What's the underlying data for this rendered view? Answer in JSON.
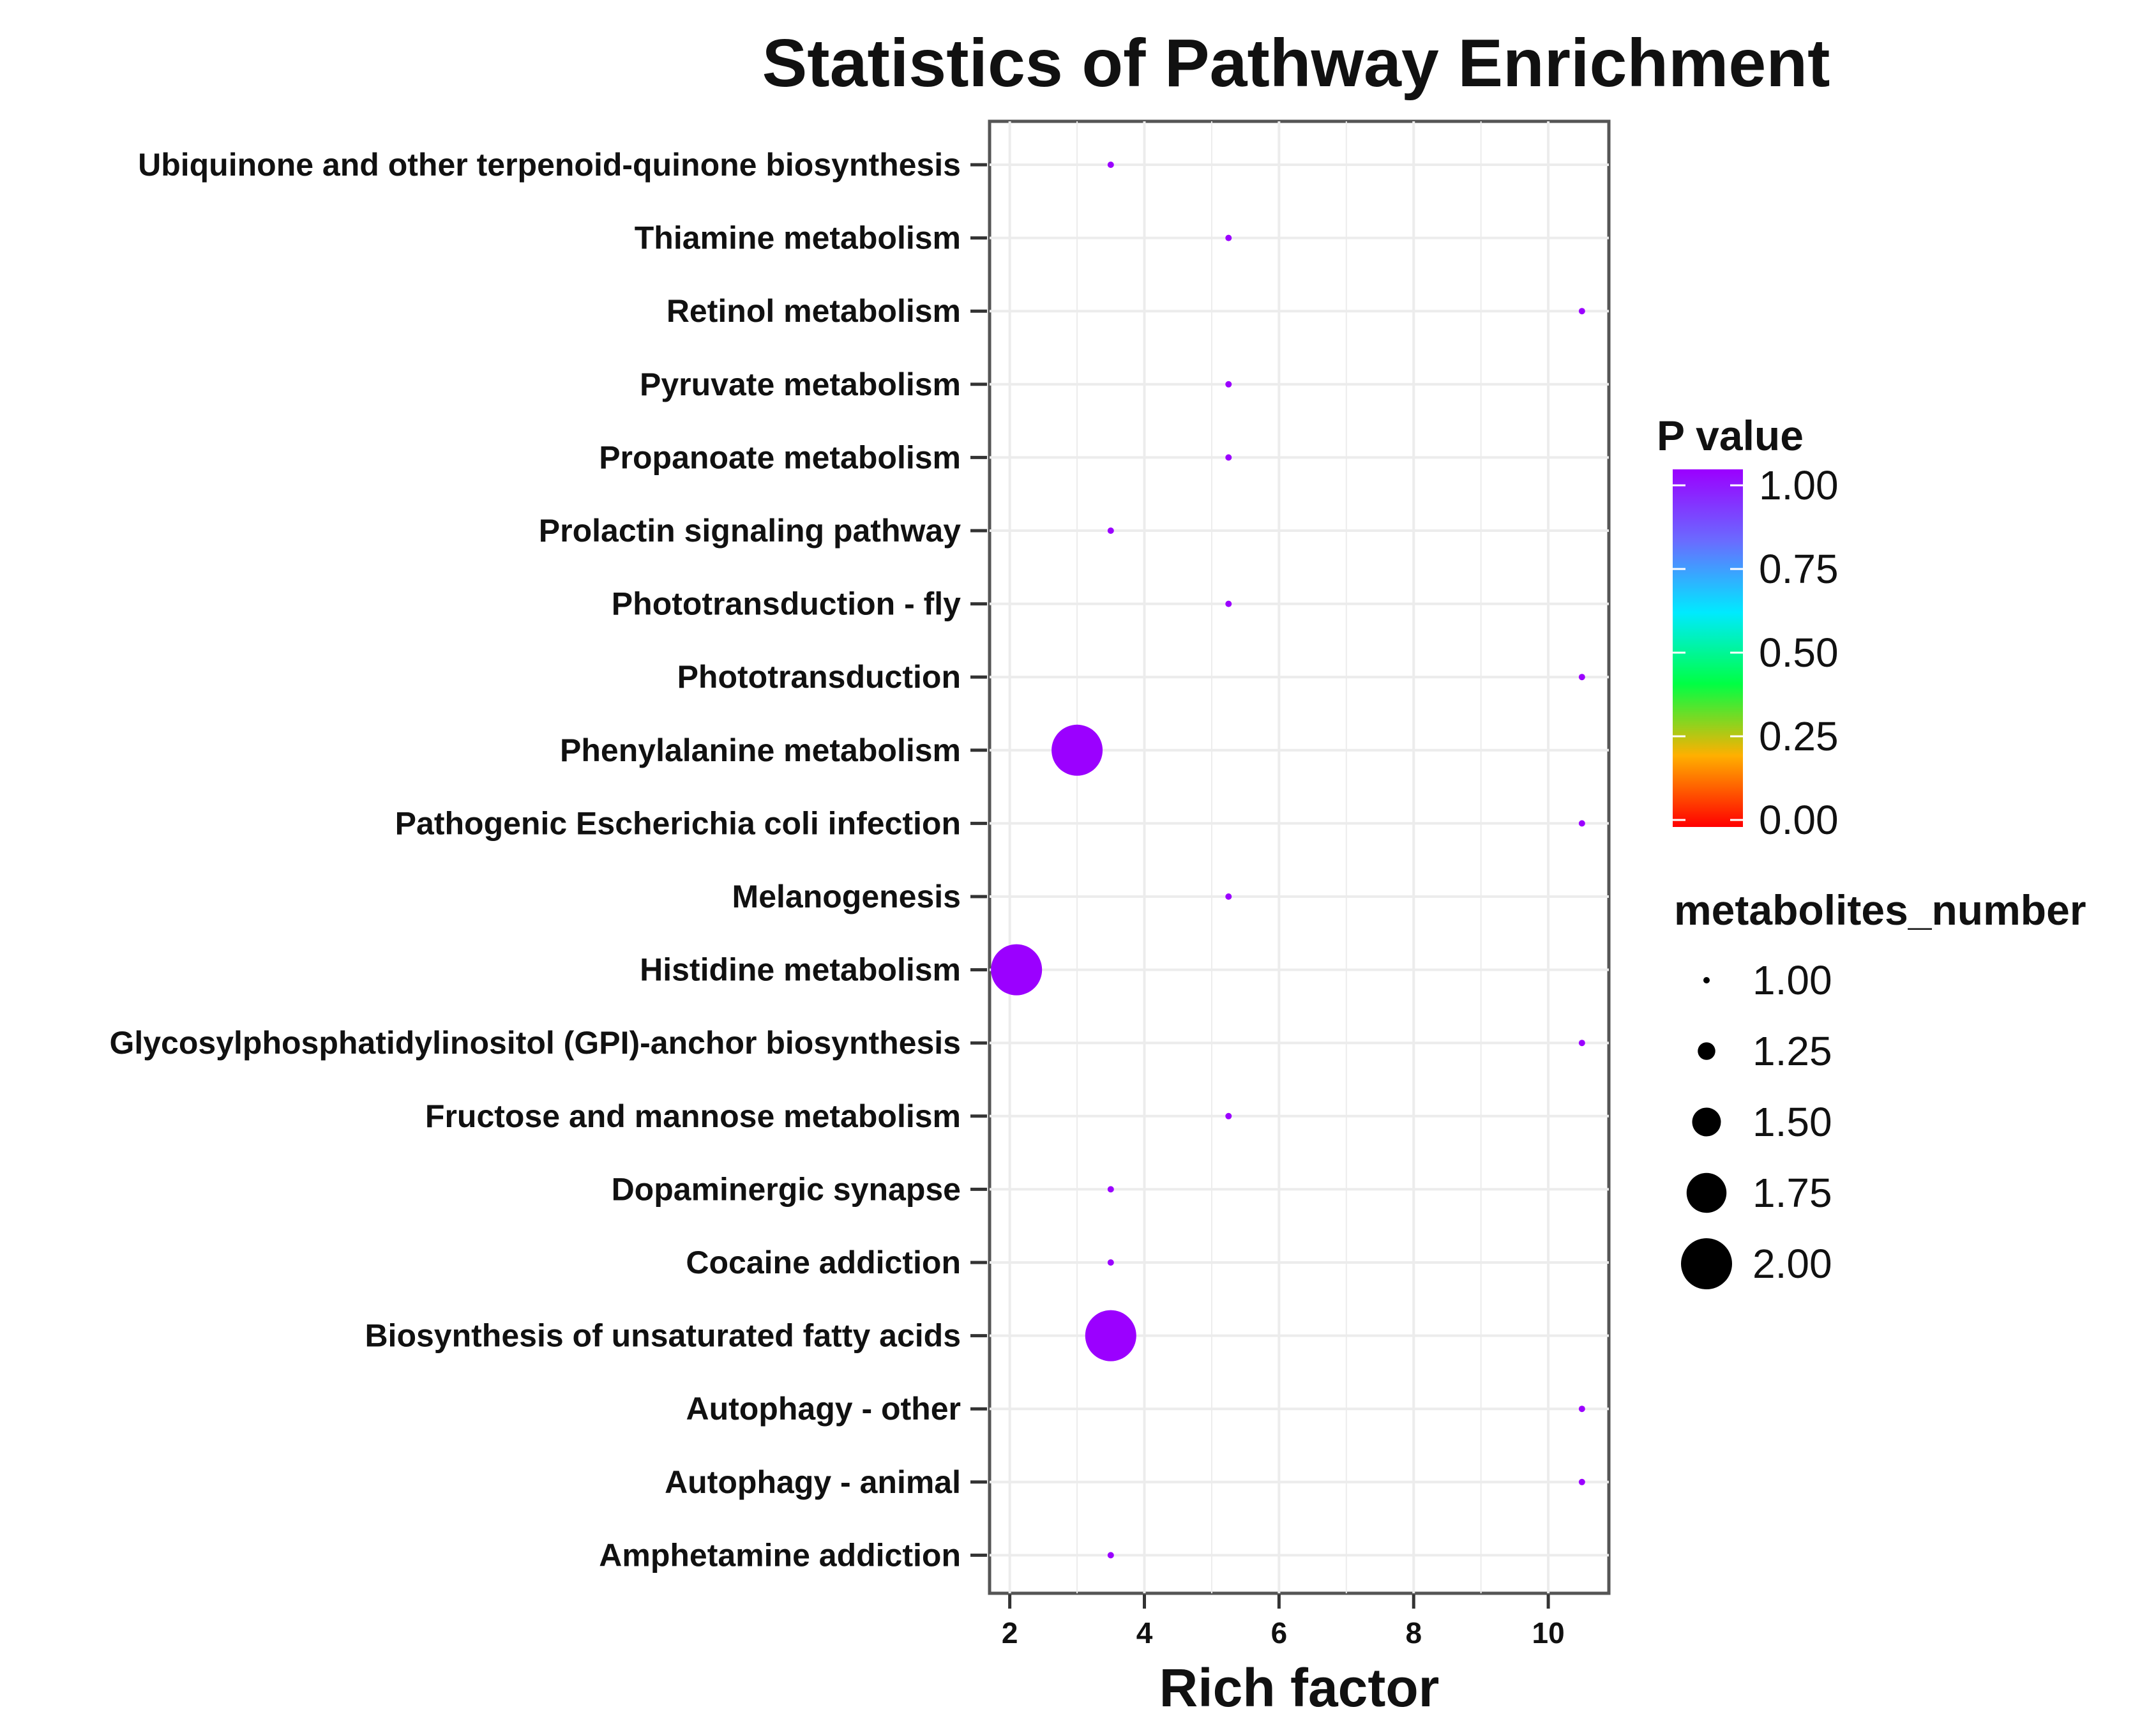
{
  "chart_data": {
    "type": "scatter",
    "title": "Statistics of Pathway Enrichment",
    "xlabel": "Rich factor",
    "ylabel": "",
    "xlim": [
      1.7,
      10.9
    ],
    "xticks": [
      2,
      4,
      6,
      8,
      10
    ],
    "grid": true,
    "categories": [
      "Ubiquinone and other terpenoid-quinone biosynthesis",
      "Thiamine metabolism",
      "Retinol metabolism",
      "Pyruvate metabolism",
      "Propanoate metabolism",
      "Prolactin signaling pathway",
      "Phototransduction - fly",
      "Phototransduction",
      "Phenylalanine metabolism",
      "Pathogenic Escherichia coli infection",
      "Melanogenesis",
      "Histidine metabolism",
      "Glycosylphosphatidylinositol (GPI)-anchor biosynthesis",
      "Fructose and mannose metabolism",
      "Dopaminergic synapse",
      "Cocaine addiction",
      "Biosynthesis of unsaturated fatty acids",
      "Autophagy - other",
      "Autophagy - animal",
      "Amphetamine addiction"
    ],
    "points": [
      {
        "pathway": "Ubiquinone and other terpenoid-quinone biosynthesis",
        "rich_factor": 3.5,
        "metabolites_number": 1,
        "p_value": 1.0
      },
      {
        "pathway": "Thiamine metabolism",
        "rich_factor": 5.25,
        "metabolites_number": 1,
        "p_value": 1.0
      },
      {
        "pathway": "Retinol metabolism",
        "rich_factor": 10.5,
        "metabolites_number": 1,
        "p_value": 1.0
      },
      {
        "pathway": "Pyruvate metabolism",
        "rich_factor": 5.25,
        "metabolites_number": 1,
        "p_value": 1.0
      },
      {
        "pathway": "Propanoate metabolism",
        "rich_factor": 5.25,
        "metabolites_number": 1,
        "p_value": 1.0
      },
      {
        "pathway": "Prolactin signaling pathway",
        "rich_factor": 3.5,
        "metabolites_number": 1,
        "p_value": 1.0
      },
      {
        "pathway": "Phototransduction - fly",
        "rich_factor": 5.25,
        "metabolites_number": 1,
        "p_value": 1.0
      },
      {
        "pathway": "Phototransduction",
        "rich_factor": 10.5,
        "metabolites_number": 1,
        "p_value": 1.0
      },
      {
        "pathway": "Phenylalanine metabolism",
        "rich_factor": 3.0,
        "metabolites_number": 2,
        "p_value": 1.0
      },
      {
        "pathway": "Pathogenic Escherichia coli infection",
        "rich_factor": 10.5,
        "metabolites_number": 1,
        "p_value": 1.0
      },
      {
        "pathway": "Melanogenesis",
        "rich_factor": 5.25,
        "metabolites_number": 1,
        "p_value": 1.0
      },
      {
        "pathway": "Histidine metabolism",
        "rich_factor": 2.1,
        "metabolites_number": 2,
        "p_value": 1.0
      },
      {
        "pathway": "Glycosylphosphatidylinositol (GPI)-anchor biosynthesis",
        "rich_factor": 10.5,
        "metabolites_number": 1,
        "p_value": 1.0
      },
      {
        "pathway": "Fructose and mannose metabolism",
        "rich_factor": 5.25,
        "metabolites_number": 1,
        "p_value": 1.0
      },
      {
        "pathway": "Dopaminergic synapse",
        "rich_factor": 3.5,
        "metabolites_number": 1,
        "p_value": 1.0
      },
      {
        "pathway": "Cocaine addiction",
        "rich_factor": 3.5,
        "metabolites_number": 1,
        "p_value": 1.0
      },
      {
        "pathway": "Biosynthesis of unsaturated fatty acids",
        "rich_factor": 3.5,
        "metabolites_number": 2,
        "p_value": 1.0
      },
      {
        "pathway": "Autophagy - other",
        "rich_factor": 10.5,
        "metabolites_number": 1,
        "p_value": 1.0
      },
      {
        "pathway": "Autophagy - animal",
        "rich_factor": 10.5,
        "metabolites_number": 1,
        "p_value": 1.0
      },
      {
        "pathway": "Amphetamine addiction",
        "rich_factor": 3.5,
        "metabolites_number": 1,
        "p_value": 1.0
      }
    ],
    "color_legend": {
      "title": "P value",
      "labels": [
        "1.00",
        "0.75",
        "0.50",
        "0.25",
        "0.00"
      ],
      "gradient": [
        "#9b00ff",
        "#6a6bff",
        "#00eaff",
        "#00ff44",
        "#ffb000",
        "#ff0000"
      ]
    },
    "size_legend": {
      "title": "metabolites_number",
      "labels": [
        "1.00",
        "1.25",
        "1.50",
        "1.75",
        "2.00"
      ],
      "values": [
        1.0,
        1.25,
        1.5,
        1.75,
        2.0
      ]
    },
    "point_color": "#9b00ff"
  }
}
